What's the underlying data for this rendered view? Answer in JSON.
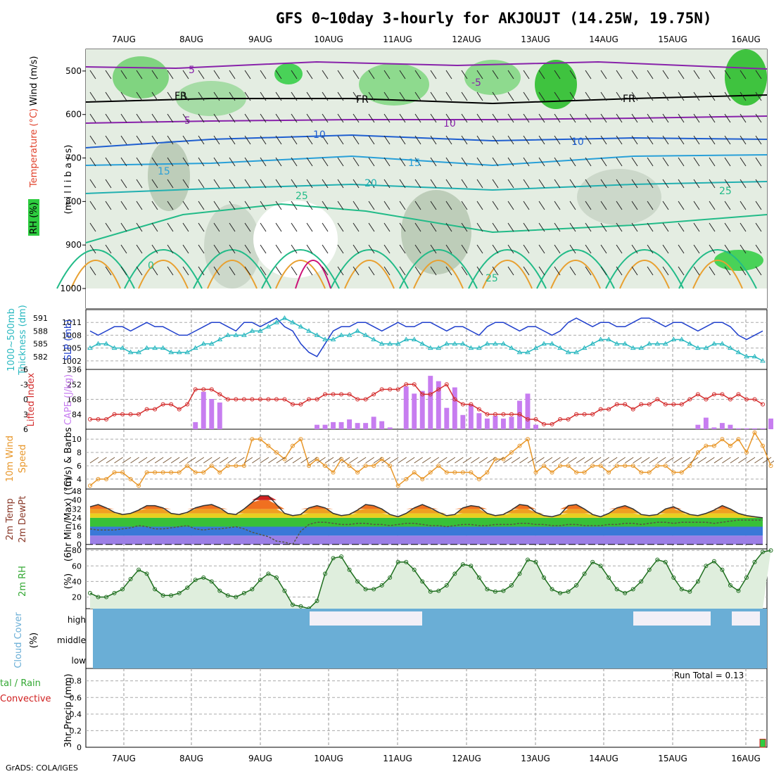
{
  "title": "GFS 0~10day 3-hourly for AKJOUJT (14.25W, 19.75N)",
  "credit": "GrADS: COLA/IGES",
  "dates": [
    "7AUG",
    "8AUG",
    "9AUG",
    "10AUG",
    "11AUG",
    "12AUG",
    "13AUG",
    "14AUG",
    "15AUG",
    "16AUG"
  ],
  "panel_labels": {
    "upper_p1": "(m i l l i b a r s)",
    "upper_rh": "RH (%)",
    "upper_temp": "Temperature (°C)",
    "upper_wind": "Wind (m/s)",
    "slp": "SLP (mb)",
    "thick_1": "1000~500mb",
    "thick_2": "Thickness (dm)",
    "cape": "CAPE (J/kg)",
    "li": "Lifted Index",
    "wind_a": "10m Wind",
    "wind_b": "Speed",
    "wind_c": "(m/s) & Barbs",
    "t_a": "2m Temp",
    "t_b": "2m DewPt",
    "t_c": "(6hr Min/Max) (°C)",
    "rh2": "2m RH",
    "rh2_unit": "(%)",
    "cloud_a": "Cloud Cover",
    "cloud_b": "(%)",
    "precip_a": "3hr Precip (mm)",
    "precip_b": "tal / Rain",
    "precip_c": "Convective"
  },
  "contour_labels": [
    "5",
    "-5",
    "FR",
    "5",
    "10",
    "15",
    "20",
    "25",
    "0",
    "15",
    "10",
    "25",
    "25",
    "FR",
    "FR",
    "10"
  ],
  "pressure_ticks": [
    "500",
    "600",
    "700",
    "800",
    "900",
    "1000"
  ],
  "slp_ticks": [
    "1011",
    "1008",
    "1005",
    "1002"
  ],
  "thick_ticks": [
    "591",
    "588",
    "585",
    "582"
  ],
  "li_ticks": [
    "-6",
    "-3",
    "0",
    "3",
    "6"
  ],
  "cape_ticks": [
    "336",
    "252",
    "168",
    "84"
  ],
  "wind_ticks": [
    "10",
    "8",
    "6",
    "4"
  ],
  "temp_ticks": [
    "48",
    "40",
    "32",
    "24",
    "16",
    "8",
    "0"
  ],
  "rh_ticks": [
    "80",
    "60",
    "40",
    "20"
  ],
  "cloud_levels": [
    "high",
    "middle",
    "low"
  ],
  "precip_ticks": [
    "0.8",
    "0.6",
    "0.4",
    "0.2",
    "0"
  ],
  "run_total": "Run Total = 0.13",
  "colors": {
    "slp": "#1f3fcc",
    "thickness": "#29b8c0",
    "li": "#d42e2e",
    "cape": "#c77df0",
    "wind": "#e8972a",
    "rh": "#33a833",
    "cloud": "#6aaed6",
    "temp_purple": "#8822aa"
  },
  "chart_data": [
    {
      "type": "line",
      "name": "upper-air cross-section",
      "ylabel": "mb",
      "ylim": [
        1000,
        450
      ],
      "x": [
        "6AUG 12Z",
        "16AUG 12Z"
      ]
    },
    {
      "type": "line",
      "title": "",
      "series": [
        {
          "name": "SLP (mb)",
          "values": [
            1009,
            1008,
            1009,
            1010,
            1010,
            1009,
            1010,
            1011,
            1010,
            1010,
            1009,
            1008,
            1008,
            1009,
            1010,
            1011,
            1011,
            1010,
            1009,
            1011,
            1011,
            1010,
            1011,
            1012,
            1010,
            1009,
            1006,
            1004,
            1003,
            1006,
            1009,
            1010,
            1010,
            1011,
            1011,
            1010,
            1009,
            1010,
            1011,
            1010,
            1010,
            1011,
            1011,
            1010,
            1009,
            1010,
            1010,
            1009,
            1008,
            1010,
            1011,
            1011,
            1010,
            1009,
            1010,
            1010,
            1009,
            1008,
            1009,
            1011,
            1012,
            1011,
            1010,
            1011,
            1011,
            1010,
            1010,
            1011,
            1012,
            1012,
            1011,
            1010,
            1011,
            1011,
            1010,
            1009,
            1010,
            1011,
            1011,
            1010,
            1008,
            1007,
            1008,
            1009
          ]
        },
        {
          "name": "1000~500mb Thickness (dm)",
          "values": [
            584,
            585,
            585,
            584,
            584,
            583,
            583,
            584,
            584,
            584,
            583,
            583,
            583,
            584,
            585,
            585,
            586,
            587,
            587,
            587,
            588,
            588,
            589,
            590,
            591,
            590,
            589,
            588,
            587,
            586,
            586,
            587,
            587,
            588,
            587,
            586,
            585,
            585,
            585,
            586,
            586,
            585,
            584,
            584,
            585,
            585,
            585,
            584,
            584,
            585,
            585,
            585,
            584,
            583,
            583,
            584,
            585,
            585,
            584,
            583,
            583,
            584,
            585,
            586,
            586,
            585,
            585,
            584,
            584,
            585,
            585,
            585,
            586,
            586,
            585,
            584,
            584,
            585,
            585,
            584,
            583,
            582,
            582,
            581
          ]
        }
      ]
    },
    {
      "type": "bar",
      "series": [
        {
          "name": "Lifted Index",
          "values": [
            4,
            4,
            4,
            3,
            3,
            3,
            3,
            2,
            2,
            1,
            1,
            2,
            1,
            -2,
            -2,
            -2,
            -1,
            0,
            0,
            0,
            0,
            0,
            0,
            0,
            0,
            1,
            1,
            0,
            0,
            -1,
            -1,
            -1,
            -1,
            0,
            0,
            -1,
            -2,
            -2,
            -2,
            -3,
            -3,
            -1,
            -1,
            -2,
            -3,
            0,
            1,
            1,
            2,
            3,
            3,
            3,
            3,
            3,
            4,
            4,
            5,
            5,
            4,
            4,
            3,
            3,
            3,
            2,
            2,
            1,
            1,
            2,
            1,
            1,
            0,
            1,
            1,
            1,
            0,
            -1,
            0,
            -1,
            -1,
            0,
            -1,
            0,
            0,
            1
          ]
        },
        {
          "name": "CAPE (J/kg)",
          "values": [
            0,
            0,
            0,
            0,
            0,
            0,
            0,
            0,
            0,
            0,
            0,
            0,
            0,
            40,
            210,
            170,
            150,
            0,
            0,
            0,
            0,
            0,
            0,
            0,
            0,
            0,
            0,
            0,
            25,
            25,
            40,
            40,
            55,
            35,
            35,
            70,
            45,
            10,
            0,
            240,
            200,
            215,
            300,
            270,
            120,
            235,
            80,
            140,
            90,
            60,
            75,
            60,
            70,
            160,
            200,
            25,
            0,
            0,
            0,
            0,
            0,
            0,
            0,
            0,
            0,
            0,
            0,
            0,
            0,
            0,
            0,
            0,
            0,
            0,
            0,
            25,
            65,
            10,
            35,
            25,
            5,
            5,
            5,
            5,
            60,
            5,
            45,
            5,
            5
          ]
        }
      ]
    },
    {
      "type": "line",
      "series": [
        {
          "name": "10m Wind Speed (m/s)",
          "values": [
            3,
            4,
            4,
            5,
            5,
            4,
            3,
            5,
            5,
            5,
            5,
            5,
            6,
            5,
            5,
            6,
            5,
            6,
            6,
            6,
            10,
            10,
            9,
            8,
            7,
            9,
            10,
            6,
            7,
            6,
            5,
            7,
            6,
            5,
            6,
            6,
            7,
            6,
            3,
            4,
            5,
            4,
            5,
            6,
            5,
            5,
            5,
            5,
            4,
            5,
            7,
            7,
            8,
            9,
            10,
            5,
            6,
            5,
            6,
            6,
            5,
            5,
            6,
            6,
            5,
            6,
            6,
            6,
            5,
            5,
            6,
            6,
            5,
            5,
            6,
            8,
            9,
            9,
            10,
            9,
            10,
            8,
            11,
            9,
            6
          ]
        }
      ],
      "ylim": [
        3,
        11
      ]
    },
    {
      "type": "area",
      "series": [
        {
          "name": "2m Temp",
          "values": [
            34,
            36,
            33,
            29,
            27,
            28,
            31,
            35,
            35,
            33,
            28,
            27,
            29,
            33,
            35,
            36,
            33,
            28,
            27,
            32,
            38,
            44,
            44,
            36,
            28,
            26,
            27,
            33,
            35,
            33,
            28,
            26,
            27,
            31,
            36,
            35,
            32,
            27,
            25,
            28,
            33,
            36,
            33,
            29,
            26,
            27,
            33,
            35,
            34,
            28,
            26,
            27,
            31,
            36,
            35,
            29,
            26,
            25,
            27,
            35,
            36,
            32,
            27,
            25,
            28,
            33,
            35,
            32,
            27,
            26,
            27,
            32,
            34,
            30,
            27,
            26,
            28,
            31,
            35,
            32,
            28,
            26,
            25,
            24
          ]
        },
        {
          "name": "2m DewPt",
          "values": [
            14,
            13,
            13,
            13,
            14,
            15,
            17,
            16,
            14,
            14,
            15,
            16,
            17,
            14,
            13,
            14,
            14,
            15,
            16,
            14,
            11,
            9,
            7,
            3,
            2,
            0,
            12,
            18,
            20,
            20,
            19,
            18,
            18,
            19,
            19,
            18,
            18,
            17,
            18,
            19,
            19,
            18,
            17,
            17,
            16,
            17,
            18,
            18,
            17,
            17,
            18,
            18,
            18,
            19,
            19,
            18,
            18,
            17,
            17,
            18,
            18,
            17,
            17,
            17,
            18,
            18,
            19,
            19,
            18,
            19,
            20,
            20,
            19,
            20,
            20,
            20,
            20,
            19,
            20,
            21,
            22,
            22,
            22,
            22
          ]
        }
      ],
      "ylim": [
        0,
        48
      ]
    },
    {
      "type": "area",
      "series": [
        {
          "name": "2m RH (%)",
          "values": [
            25,
            20,
            20,
            25,
            30,
            43,
            55,
            50,
            30,
            22,
            22,
            25,
            32,
            42,
            45,
            40,
            28,
            22,
            20,
            25,
            30,
            42,
            50,
            45,
            28,
            10,
            8,
            5,
            15,
            50,
            70,
            72,
            55,
            40,
            30,
            30,
            35,
            45,
            65,
            65,
            55,
            40,
            27,
            28,
            35,
            50,
            62,
            60,
            45,
            30,
            27,
            28,
            35,
            50,
            68,
            65,
            45,
            30,
            25,
            27,
            35,
            50,
            65,
            60,
            45,
            30,
            25,
            30,
            40,
            55,
            68,
            65,
            45,
            30,
            27,
            40,
            60,
            66,
            55,
            35,
            28,
            45,
            65,
            78,
            80
          ]
        }
      ],
      "ylim": [
        0,
        80
      ]
    },
    {
      "type": "heatmap",
      "name": "Cloud Cover (%)",
      "categories": [
        "high",
        "middle",
        "low"
      ]
    },
    {
      "type": "bar",
      "name": "3hr Precip (mm)",
      "values": [
        0,
        0,
        0,
        0,
        0,
        0,
        0,
        0,
        0,
        0,
        0,
        0,
        0,
        0,
        0,
        0,
        0,
        0,
        0,
        0,
        0,
        0,
        0,
        0,
        0,
        0,
        0,
        0,
        0,
        0,
        0,
        0,
        0,
        0,
        0,
        0,
        0,
        0,
        0,
        0,
        0,
        0,
        0,
        0,
        0,
        0,
        0,
        0,
        0,
        0,
        0,
        0,
        0,
        0,
        0,
        0,
        0,
        0,
        0,
        0,
        0,
        0,
        0,
        0,
        0,
        0,
        0,
        0,
        0,
        0,
        0,
        0,
        0,
        0,
        0,
        0,
        0,
        0,
        0,
        0,
        0,
        0,
        0.13
      ],
      "ylim": [
        0,
        1
      ]
    }
  ]
}
